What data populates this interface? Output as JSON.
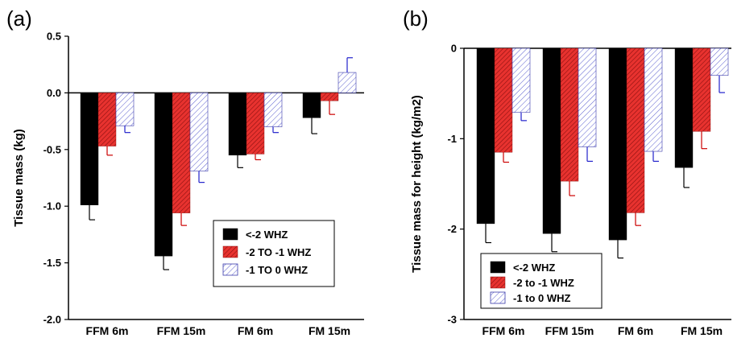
{
  "chart_data": [
    {
      "panel_label": "(a)",
      "type": "bar",
      "ylabel": "Tissue mass (kg)",
      "ylim": [
        -2.0,
        0.5
      ],
      "yticks": [
        0.5,
        0.0,
        -0.5,
        -1.0,
        -1.5,
        -2.0
      ],
      "ytick_labels": [
        "0.5",
        "0.0",
        "-0.5",
        "-1.0",
        "-1.5",
        "-2.0"
      ],
      "categories": [
        "FFM 6m",
        "FFM 15m",
        "FM 6m",
        "FM 15m"
      ],
      "legend_position": "bottom-right",
      "series": [
        {
          "name": "<-2 WHZ",
          "values": [
            -0.99,
            -1.44,
            -0.55,
            -0.22
          ],
          "errors": [
            0.13,
            0.12,
            0.11,
            0.14
          ]
        },
        {
          "name": "-2 TO -1 WHZ",
          "values": [
            -0.47,
            -1.06,
            -0.54,
            -0.07
          ],
          "errors": [
            0.08,
            0.11,
            0.05,
            0.12
          ]
        },
        {
          "name": "-1 TO 0 WHZ",
          "values": [
            -0.29,
            -0.69,
            -0.3,
            0.18
          ],
          "errors": [
            0.06,
            0.1,
            0.05,
            0.13
          ]
        }
      ]
    },
    {
      "panel_label": "(b)",
      "type": "bar",
      "ylabel": "Tissue mass for height (kg/m2)",
      "ylim": [
        -3,
        0
      ],
      "yticks": [
        0,
        -1,
        -2,
        -3
      ],
      "ytick_labels": [
        "0",
        "-1",
        "-2",
        "-3"
      ],
      "categories": [
        "FFM 6m",
        "FFM 15m",
        "FM 6m",
        "FM 15m"
      ],
      "legend_position": "bottom-left",
      "series": [
        {
          "name": "<-2 WHZ",
          "values": [
            -1.94,
            -2.05,
            -2.12,
            -1.32
          ],
          "errors": [
            0.21,
            0.2,
            0.2,
            0.22
          ]
        },
        {
          "name": "-2 to -1 WHZ",
          "values": [
            -1.15,
            -1.47,
            -1.82,
            -0.92
          ],
          "errors": [
            0.11,
            0.16,
            0.14,
            0.19
          ]
        },
        {
          "name": "-1 to 0 WHZ",
          "values": [
            -0.71,
            -1.09,
            -1.14,
            -0.3
          ],
          "errors": [
            0.09,
            0.16,
            0.11,
            0.19
          ]
        }
      ]
    }
  ],
  "colors": {
    "series_fill": [
      "#000000",
      "#e8322f",
      "#ffffff"
    ],
    "series_hatch": [
      "none",
      "#8a1010",
      "#5b5fcf"
    ],
    "error_bar": [
      "#000000",
      "#cc0000",
      "#2222cc"
    ]
  }
}
